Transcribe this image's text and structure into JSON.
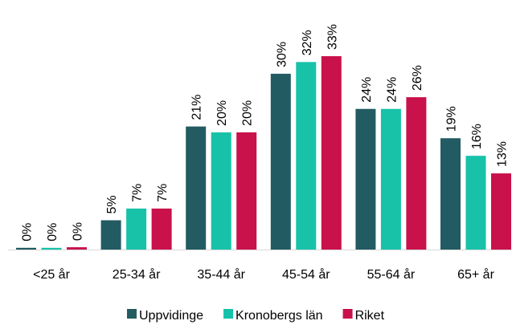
{
  "chart_data": {
    "type": "bar",
    "categories": [
      "<25 år",
      "25-34 år",
      "35-44 år",
      "45-54 år",
      "55-64 år",
      "65+ år"
    ],
    "series": [
      {
        "name": "Uppvidinge",
        "color": "#235b62",
        "values": [
          0.3,
          5,
          21,
          30,
          24,
          19
        ],
        "value_labels": [
          "0%",
          "5%",
          "21%",
          "30%",
          "24%",
          "19%"
        ]
      },
      {
        "name": "Kronobergs län",
        "color": "#17c2a9",
        "values": [
          0.3,
          7,
          20,
          32,
          24,
          16
        ],
        "value_labels": [
          "0%",
          "7%",
          "20%",
          "32%",
          "24%",
          "16%"
        ]
      },
      {
        "name": "Riket",
        "color": "#c9114b",
        "values": [
          0.4,
          7,
          20,
          33,
          26,
          13
        ],
        "value_labels": [
          "0%",
          "7%",
          "20%",
          "33%",
          "26%",
          "13%"
        ]
      }
    ],
    "legend": "bottom"
  }
}
